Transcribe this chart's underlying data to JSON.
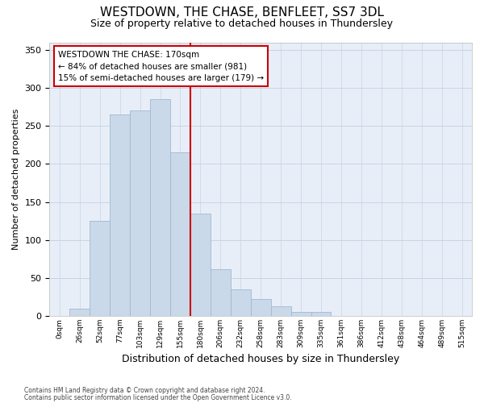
{
  "title": "WESTDOWN, THE CHASE, BENFLEET, SS7 3DL",
  "subtitle": "Size of property relative to detached houses in Thundersley",
  "xlabel": "Distribution of detached houses by size in Thundersley",
  "ylabel": "Number of detached properties",
  "footnote1": "Contains HM Land Registry data © Crown copyright and database right 2024.",
  "footnote2": "Contains public sector information licensed under the Open Government Licence v3.0.",
  "bar_labels": [
    "0sqm",
    "26sqm",
    "52sqm",
    "77sqm",
    "103sqm",
    "129sqm",
    "155sqm",
    "180sqm",
    "206sqm",
    "232sqm",
    "258sqm",
    "283sqm",
    "309sqm",
    "335sqm",
    "361sqm",
    "386sqm",
    "412sqm",
    "438sqm",
    "464sqm",
    "489sqm",
    "515sqm"
  ],
  "bar_values": [
    0,
    10,
    125,
    265,
    270,
    285,
    215,
    135,
    62,
    35,
    22,
    13,
    5,
    5,
    0,
    0,
    0,
    0,
    0,
    0,
    0
  ],
  "bar_fill": "#c9d9ea",
  "bar_edge": "#a0b8d0",
  "vline_color": "#cc0000",
  "vline_index": 7,
  "annotation_line1": "WESTDOWN THE CHASE: 170sqm",
  "annotation_line2": "← 84% of detached houses are smaller (981)",
  "annotation_line3": "15% of semi-detached houses are larger (179) →",
  "ylim_max": 360,
  "yticks": [
    0,
    50,
    100,
    150,
    200,
    250,
    300,
    350
  ],
  "grid_color": "#c8d4e4",
  "bg_color": "#e8eef8",
  "title_fontsize": 11,
  "subtitle_fontsize": 9
}
